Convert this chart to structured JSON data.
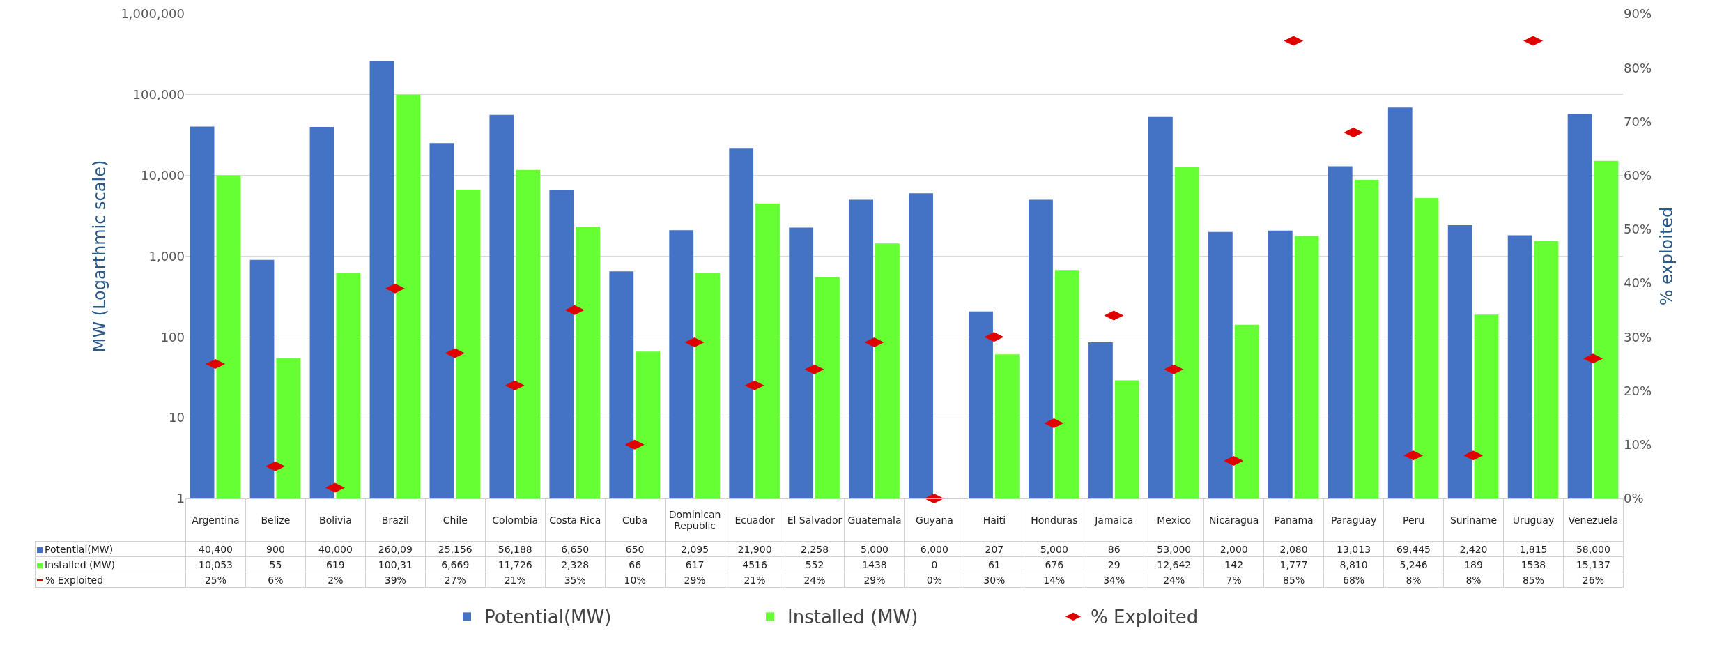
{
  "chart_data": {
    "type": "bar",
    "ylabel": "MW (Logarthmic scale)",
    "y2label": "% exploited",
    "categories": [
      "Argentina",
      "Belize",
      "Bolivia",
      "Brazil",
      "Chile",
      "Colombia",
      "Costa Rica",
      "Cuba",
      "Dominican Republic",
      "Ecuador",
      "El Salvador",
      "Guatemala",
      "Guyana",
      "Haiti",
      "Honduras",
      "Jamaica",
      "Mexico",
      "Nicaragua",
      "Panama",
      "Paraguay",
      "Peru",
      "Suriname",
      "Uruguay",
      "Venezuela"
    ],
    "series": [
      {
        "name": "Potential(MW)",
        "color": "#4472c4",
        "values": [
          40400,
          900,
          40000,
          260090,
          25156,
          56188,
          6650,
          650,
          2095,
          21900,
          2258,
          5000,
          6000,
          207,
          5000,
          86,
          53000,
          2000,
          2080,
          13013,
          69445,
          2420,
          1815,
          58000
        ],
        "value_labels": [
          "40,400",
          "900",
          "40,000",
          null,
          "25,156",
          "56,188",
          "6,650",
          "650",
          "2,095",
          "21,900",
          "2,258",
          "5,000",
          "6,000",
          "207",
          "5,000",
          "86",
          "53,000",
          "2,000",
          "2,080",
          "13,013",
          "69,445",
          "2,420",
          "1,815",
          "58,000"
        ]
      },
      {
        "name": "Installed (MW)",
        "color": "#66ff33",
        "values": [
          10053,
          55,
          619,
          100310,
          6669,
          11726,
          2328,
          66,
          617,
          4516,
          552,
          1438,
          null,
          61,
          676,
          29,
          12642,
          142,
          1777,
          8810,
          5246,
          189,
          1538,
          15137
        ],
        "value_labels": [
          "10,053",
          "55",
          "619",
          null,
          "6,669",
          "11,726",
          "2,328",
          "66",
          "617",
          "4516",
          "552",
          "1438",
          "0",
          "61",
          "676",
          "29",
          "12,642",
          "142",
          "1,777",
          "8,810",
          "5,246",
          "189",
          "1538",
          "15,137"
        ]
      },
      {
        "name": "% Exploited",
        "type": "scatter",
        "axis": "y2",
        "color": "#e00000",
        "values": [
          25,
          6,
          2,
          39,
          27,
          21,
          35,
          10,
          29,
          21,
          24,
          29,
          0,
          30,
          14,
          34,
          24,
          7,
          85,
          68,
          8,
          8,
          85,
          26
        ],
        "value_labels": [
          "25%",
          "6%",
          "2%",
          "39%",
          "27%",
          "21%",
          "35%",
          "10%",
          "29%",
          "21%",
          "24%",
          "29%",
          "0%",
          "30%",
          "14%",
          "34%",
          "24%",
          "7%",
          "85%",
          "68%",
          "8%",
          "8%",
          "85%",
          "26%"
        ]
      }
    ],
    "log": "y",
    "ylim": [
      1,
      1000000
    ],
    "yticks": [
      {
        "value": 1,
        "label": "1"
      },
      {
        "value": 10,
        "label": "10"
      },
      {
        "value": 100,
        "label": "100"
      },
      {
        "value": 1000,
        "label": "1,000"
      },
      {
        "value": 10000,
        "label": "10,000"
      },
      {
        "value": 100000,
        "label": "100,000"
      },
      {
        "value": 1000000,
        "label": "1,000,000"
      }
    ],
    "y2lim": [
      0,
      90
    ],
    "y2ticks": [
      {
        "value": 0,
        "label": "0%"
      },
      {
        "value": 10,
        "label": "10%"
      },
      {
        "value": 20,
        "label": "20%"
      },
      {
        "value": 30,
        "label": "30%"
      },
      {
        "value": 40,
        "label": "40%"
      },
      {
        "value": 50,
        "label": "50%"
      },
      {
        "value": 60,
        "label": "60%"
      },
      {
        "value": 70,
        "label": "70%"
      },
      {
        "value": 80,
        "label": "80%"
      },
      {
        "value": 90,
        "label": "90%"
      }
    ],
    "annotations": [
      "260,09",
      "100,31"
    ],
    "grid": "y",
    "legend": "bottom"
  }
}
